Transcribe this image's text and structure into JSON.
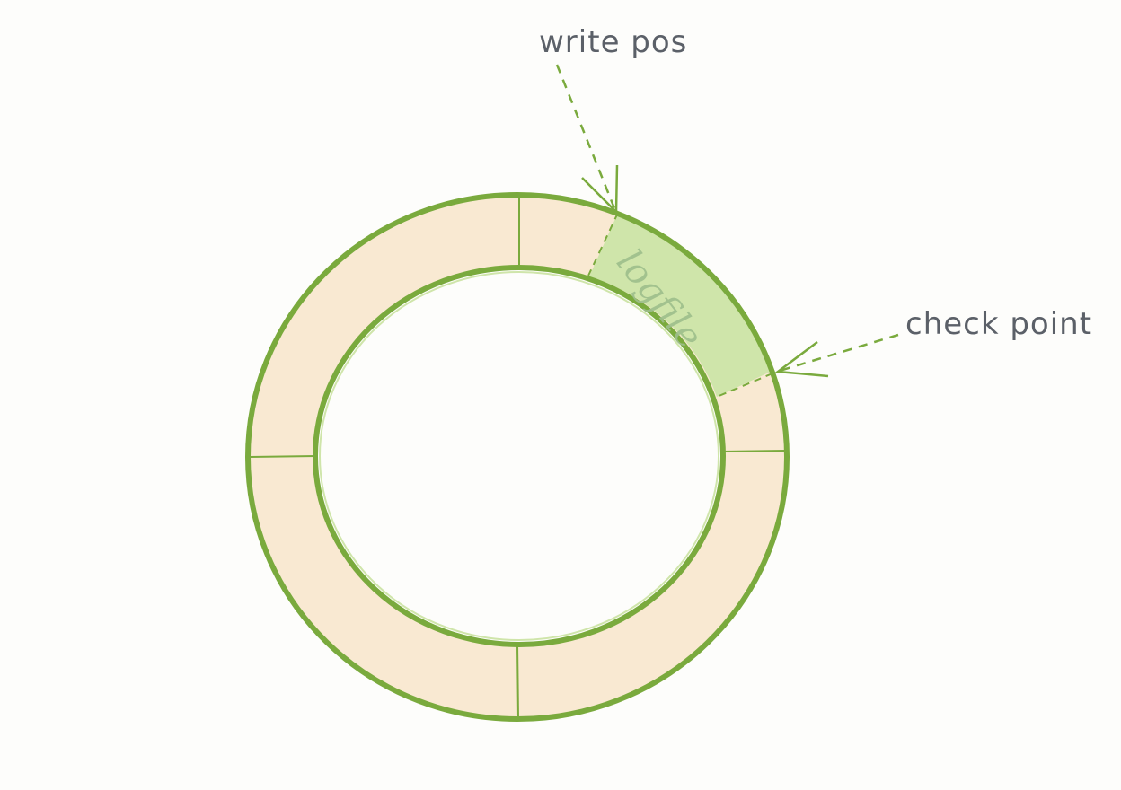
{
  "labels": {
    "write_pos": "write pos",
    "check_point": "check point",
    "logfile": "logfile"
  },
  "colors": {
    "background": "#fdfdfb",
    "ring_fill": "#f9e9d2",
    "ring_stroke": "#7aaa3d",
    "logfile_fill": "#cfe5aa",
    "annotation_text": "#5b6068",
    "logfile_text": "#9ebf8c"
  }
}
